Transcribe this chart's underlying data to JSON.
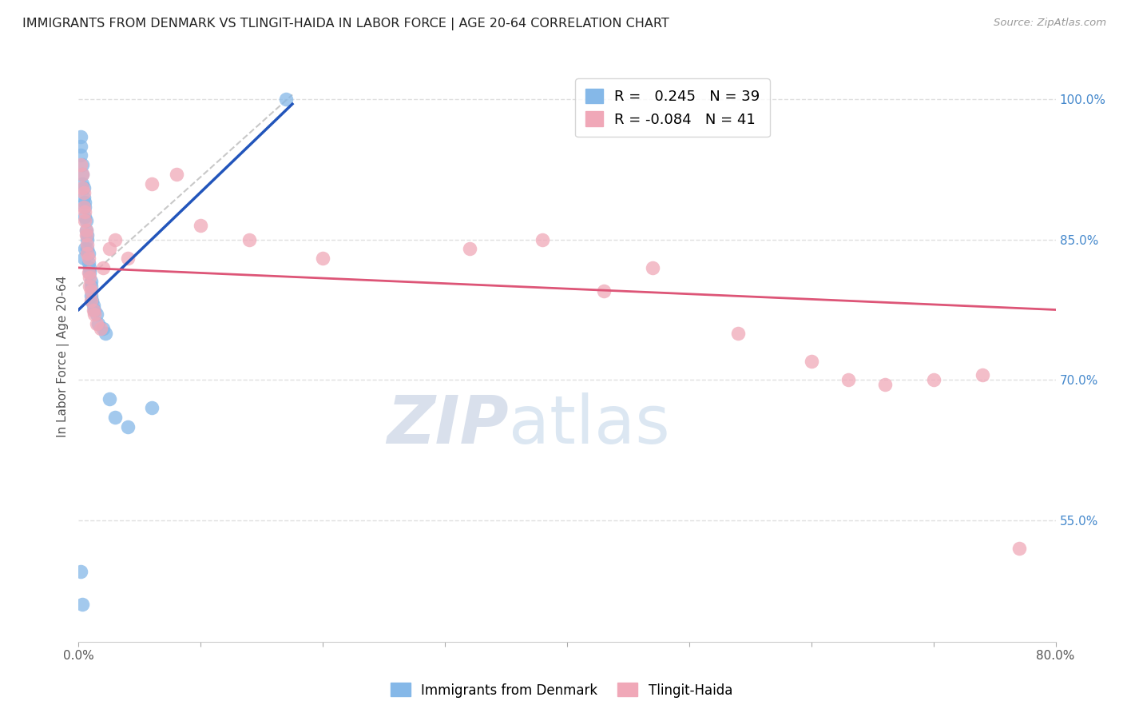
{
  "title": "IMMIGRANTS FROM DENMARK VS TLINGIT-HAIDA IN LABOR FORCE | AGE 20-64 CORRELATION CHART",
  "source": "Source: ZipAtlas.com",
  "ylabel": "In Labor Force | Age 20-64",
  "xlim": [
    0.0,
    0.8
  ],
  "ylim": [
    0.42,
    1.03
  ],
  "ytick_labels_right": [
    "100.0%",
    "85.0%",
    "70.0%",
    "55.0%"
  ],
  "ytick_positions_right": [
    1.0,
    0.85,
    0.7,
    0.55
  ],
  "blue_R": 0.245,
  "blue_N": 39,
  "pink_R": -0.084,
  "pink_N": 41,
  "blue_color": "#85b8e8",
  "pink_color": "#f0a8b8",
  "blue_line_color": "#2255bb",
  "pink_line_color": "#dd5577",
  "watermark_zip": "ZIP",
  "watermark_atlas": "atlas",
  "grid_color": "#e0e0e0",
  "bg_color": "#ffffff",
  "legend_label_blue": "Immigrants from Denmark",
  "legend_label_pink": "Tlingit-Haida",
  "blue_points_x": [
    0.002,
    0.002,
    0.002,
    0.003,
    0.003,
    0.003,
    0.004,
    0.004,
    0.005,
    0.005,
    0.005,
    0.006,
    0.006,
    0.007,
    0.007,
    0.007,
    0.008,
    0.008,
    0.009,
    0.009,
    0.01,
    0.01,
    0.01,
    0.011,
    0.012,
    0.013,
    0.015,
    0.016,
    0.02,
    0.022,
    0.025,
    0.03,
    0.04,
    0.06,
    0.17,
    0.002,
    0.003,
    0.004,
    0.005
  ],
  "blue_points_y": [
    0.96,
    0.95,
    0.94,
    0.93,
    0.92,
    0.91,
    0.905,
    0.895,
    0.89,
    0.885,
    0.875,
    0.87,
    0.86,
    0.855,
    0.85,
    0.84,
    0.835,
    0.825,
    0.82,
    0.815,
    0.805,
    0.8,
    0.79,
    0.785,
    0.78,
    0.775,
    0.77,
    0.76,
    0.755,
    0.75,
    0.68,
    0.66,
    0.65,
    0.67,
    1.0,
    0.495,
    0.46,
    0.83,
    0.84
  ],
  "pink_points_x": [
    0.002,
    0.003,
    0.003,
    0.004,
    0.004,
    0.005,
    0.005,
    0.006,
    0.006,
    0.007,
    0.007,
    0.008,
    0.008,
    0.009,
    0.009,
    0.01,
    0.01,
    0.012,
    0.013,
    0.015,
    0.018,
    0.02,
    0.025,
    0.03,
    0.04,
    0.06,
    0.08,
    0.1,
    0.14,
    0.2,
    0.32,
    0.38,
    0.43,
    0.47,
    0.54,
    0.6,
    0.63,
    0.66,
    0.7,
    0.74,
    0.77
  ],
  "pink_points_y": [
    0.93,
    0.92,
    0.905,
    0.9,
    0.885,
    0.88,
    0.87,
    0.86,
    0.855,
    0.845,
    0.835,
    0.83,
    0.815,
    0.81,
    0.8,
    0.795,
    0.785,
    0.775,
    0.77,
    0.76,
    0.755,
    0.82,
    0.84,
    0.85,
    0.83,
    0.91,
    0.92,
    0.865,
    0.85,
    0.83,
    0.84,
    0.85,
    0.795,
    0.82,
    0.75,
    0.72,
    0.7,
    0.695,
    0.7,
    0.705,
    0.52
  ],
  "blue_trend_x": [
    0.0,
    0.175
  ],
  "blue_trend_y": [
    0.775,
    0.995
  ],
  "pink_trend_x": [
    0.0,
    0.8
  ],
  "pink_trend_y": [
    0.82,
    0.775
  ],
  "ref_line_x": [
    0.0,
    0.175
  ],
  "ref_line_y": [
    0.8,
    1.005
  ]
}
